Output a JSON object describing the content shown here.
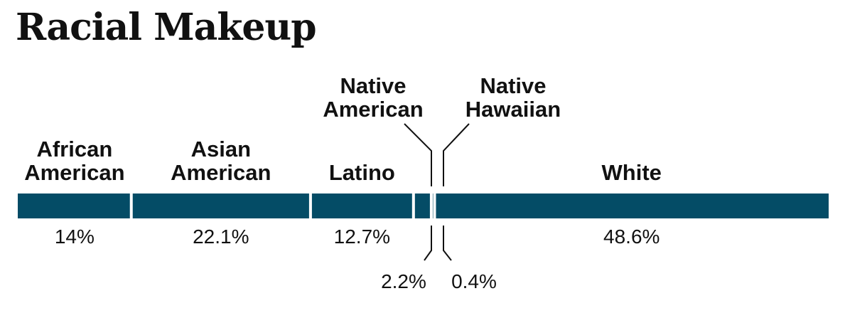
{
  "chart_data": {
    "type": "bar",
    "orientation": "horizontal-stacked",
    "title": "Racial Makeup",
    "xlabel": "",
    "ylabel": "",
    "unit": "%",
    "categories": [
      [
        "African",
        "American"
      ],
      [
        "Asian",
        "American"
      ],
      [
        "Latino"
      ],
      [
        "Native",
        "American"
      ],
      [
        "Native",
        "Hawaiian"
      ],
      [
        "White"
      ]
    ],
    "values": [
      14,
      22.1,
      12.7,
      2.2,
      0.4,
      48.6
    ],
    "value_labels": [
      "14%",
      "22.1%",
      "12.7%",
      "2.2%",
      "0.4%",
      "48.6%"
    ],
    "bar_color": "#044c66",
    "separator_color": "#ffffff",
    "grid": false,
    "legend": "none"
  }
}
